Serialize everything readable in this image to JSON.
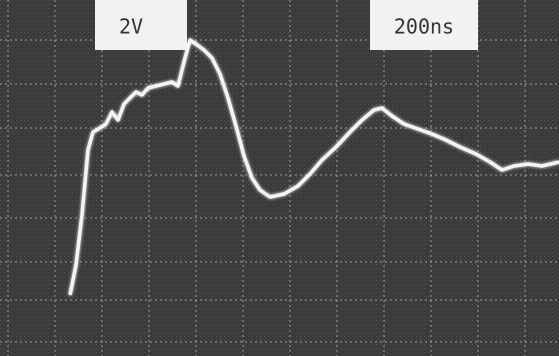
{
  "screen": {
    "labels": {
      "volts_per_div": "2V",
      "time_per_div": "200ns"
    }
  }
}
